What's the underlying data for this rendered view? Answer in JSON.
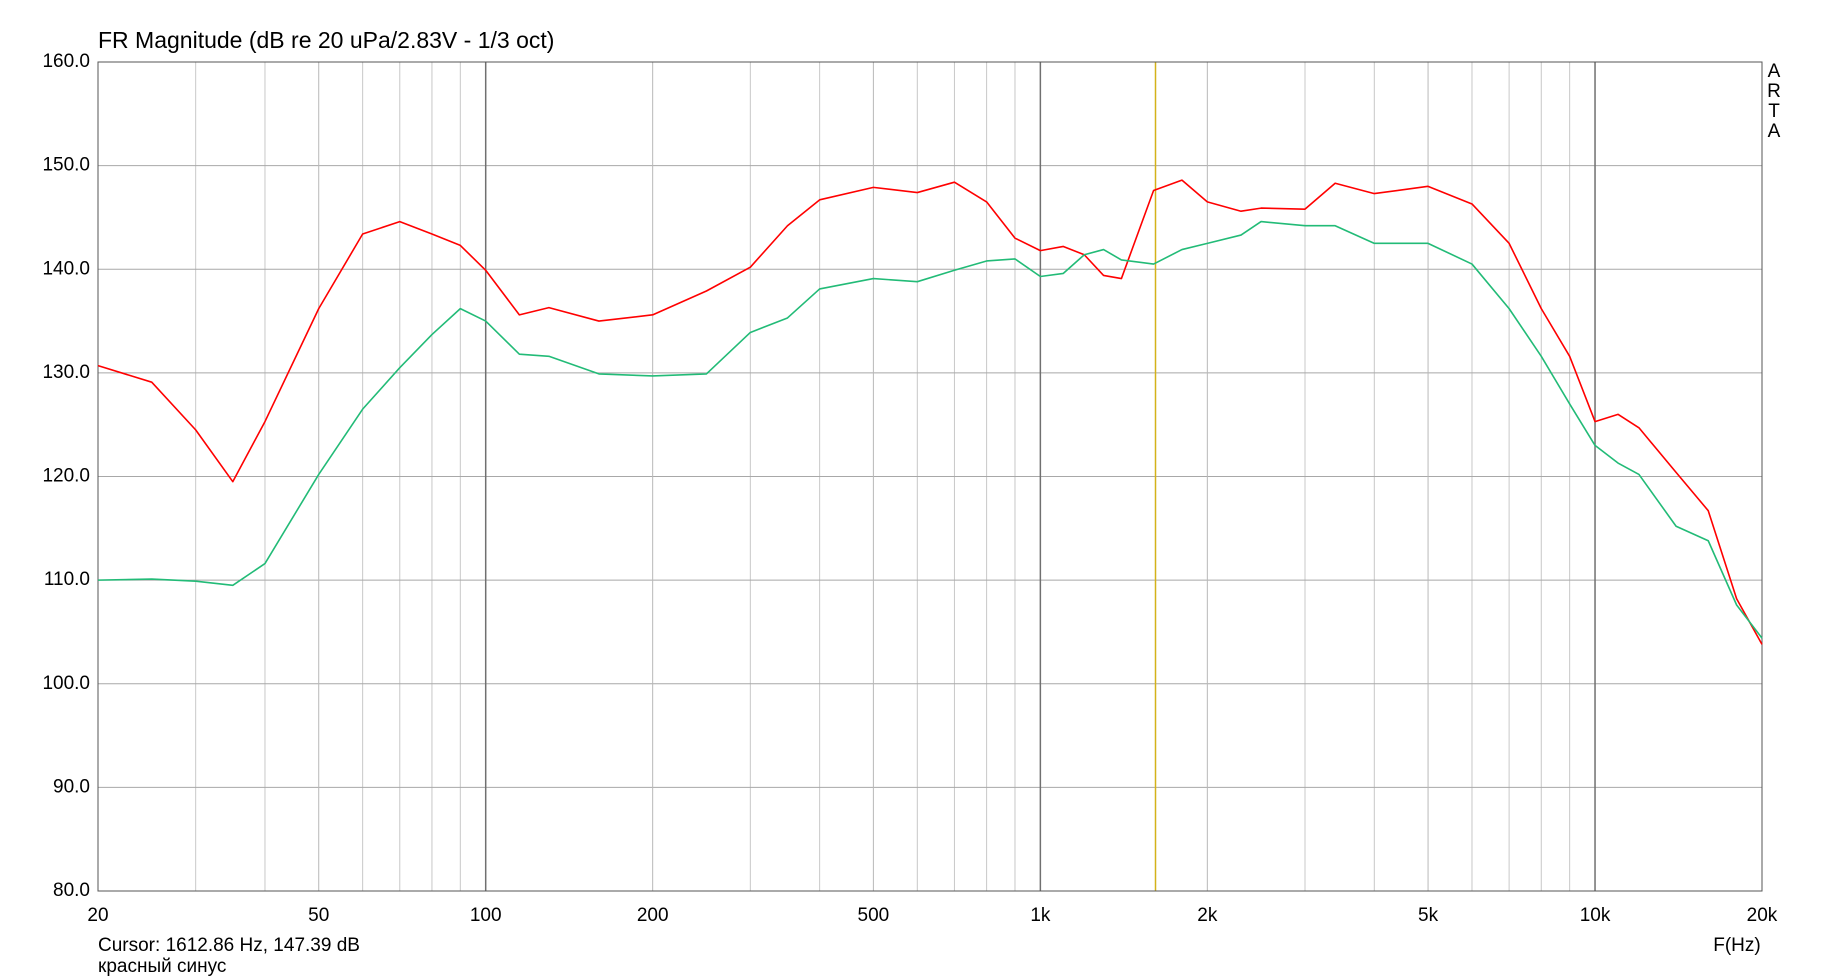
{
  "chart_data": {
    "type": "line",
    "title": "FR Magnitude (dB re 20 uPa/2.83V - 1/3 oct)",
    "x_label": "F(Hz)",
    "watermark": "ARTA",
    "cursor_text": "Cursor: 1612.86 Hz, 147.39 dB",
    "cursor_x": 1612.86,
    "cursor_color": "#d4b21a",
    "note": "красный синус",
    "xscale": "log",
    "grid": true,
    "xlim": [
      20,
      20000
    ],
    "ylim": [
      80,
      160
    ],
    "xticks": [
      20,
      50,
      100,
      200,
      500,
      {
        "value": 1000,
        "label": "1k"
      },
      {
        "value": 2000,
        "label": "2k"
      },
      {
        "value": 5000,
        "label": "5k"
      },
      {
        "value": 10000,
        "label": "10k"
      },
      {
        "value": 20000,
        "label": "20k"
      }
    ],
    "x_minor_gridlines": [
      30,
      40,
      60,
      70,
      80,
      90,
      300,
      400,
      600,
      700,
      800,
      900,
      3000,
      4000,
      6000,
      7000,
      8000,
      9000
    ],
    "yticks": [
      {
        "value": 80,
        "label": "80.0"
      },
      {
        "value": 90,
        "label": "90.0"
      },
      {
        "value": 100,
        "label": "100.0"
      },
      {
        "value": 110,
        "label": "110.0"
      },
      {
        "value": 120,
        "label": "120.0"
      },
      {
        "value": 130,
        "label": "130.0"
      },
      {
        "value": 140,
        "label": "140.0"
      },
      {
        "value": 150,
        "label": "150.0"
      },
      {
        "value": 160,
        "label": "160.0"
      }
    ],
    "x": [
      20,
      25,
      30,
      35,
      40,
      50,
      60,
      70,
      80,
      90,
      100,
      115,
      130,
      160,
      200,
      250,
      300,
      350,
      400,
      500,
      600,
      700,
      800,
      900,
      1000,
      1100,
      1200,
      1300,
      1400,
      1600,
      1800,
      2000,
      2300,
      2500,
      3000,
      3400,
      4000,
      5000,
      6000,
      7000,
      8000,
      9000,
      10000,
      11000,
      12000,
      14000,
      16000,
      18000,
      20000
    ],
    "series": [
      {
        "color": "#ff0000",
        "values": [
          130.7,
          129.1,
          124.5,
          119.5,
          125.3,
          136.2,
          143.4,
          144.6,
          143.4,
          142.3,
          139.9,
          135.6,
          136.3,
          135.0,
          135.6,
          137.9,
          140.2,
          144.2,
          146.7,
          147.9,
          147.4,
          148.4,
          146.5,
          143.0,
          141.8,
          142.2,
          141.4,
          139.4,
          139.1,
          147.6,
          148.6,
          146.5,
          145.6,
          145.9,
          145.8,
          148.3,
          147.3,
          148.0,
          146.3,
          142.5,
          136.2,
          131.6,
          125.3,
          126.0,
          124.7,
          120.4,
          116.7,
          108.2,
          103.8
        ]
      },
      {
        "color": "#22bb77",
        "values": [
          110.0,
          110.1,
          109.9,
          109.5,
          111.6,
          120.2,
          126.5,
          130.5,
          133.7,
          136.2,
          135.0,
          131.8,
          131.6,
          129.9,
          129.7,
          129.9,
          133.9,
          135.3,
          138.1,
          139.1,
          138.8,
          139.9,
          140.8,
          141.0,
          139.3,
          139.6,
          141.4,
          141.9,
          140.9,
          140.5,
          141.9,
          142.5,
          143.3,
          144.6,
          144.2,
          144.2,
          142.5,
          142.5,
          140.5,
          136.2,
          131.6,
          127.0,
          123.0,
          121.3,
          120.2,
          115.2,
          113.8,
          107.6,
          104.4
        ]
      }
    ]
  }
}
